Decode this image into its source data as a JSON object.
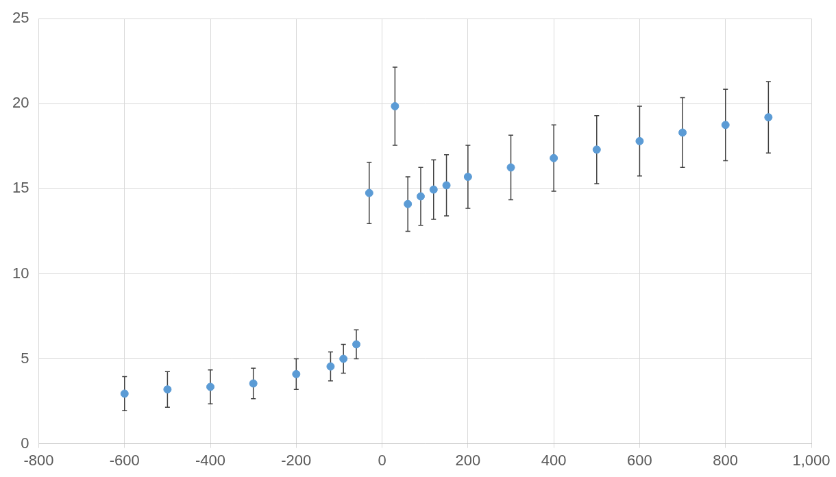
{
  "chart_data": {
    "type": "scatter",
    "x": [
      -600,
      -500,
      -400,
      -300,
      -200,
      -120,
      -90,
      -60,
      -30,
      30,
      60,
      90,
      120,
      150,
      200,
      300,
      400,
      500,
      600,
      700,
      800,
      900
    ],
    "values": [
      2.95,
      3.2,
      3.35,
      3.55,
      4.1,
      4.55,
      5.0,
      5.85,
      14.75,
      19.85,
      14.1,
      14.55,
      14.95,
      15.2,
      15.7,
      16.25,
      16.8,
      17.3,
      17.8,
      18.3,
      18.75,
      19.2
    ],
    "errors": [
      1.0,
      1.05,
      1.0,
      0.9,
      0.9,
      0.85,
      0.85,
      0.85,
      1.8,
      2.3,
      1.6,
      1.7,
      1.75,
      1.8,
      1.85,
      1.9,
      1.95,
      2.0,
      2.05,
      2.05,
      2.1,
      2.1
    ],
    "color": "#5b9bd5",
    "xlim": [
      -800,
      1000
    ],
    "xticks": [
      -800,
      -600,
      -400,
      -200,
      0,
      200,
      400,
      600,
      800,
      1000
    ],
    "ylim": [
      0,
      25
    ],
    "yticks": [
      0,
      5,
      10,
      15,
      20,
      25
    ],
    "grid": true
  }
}
